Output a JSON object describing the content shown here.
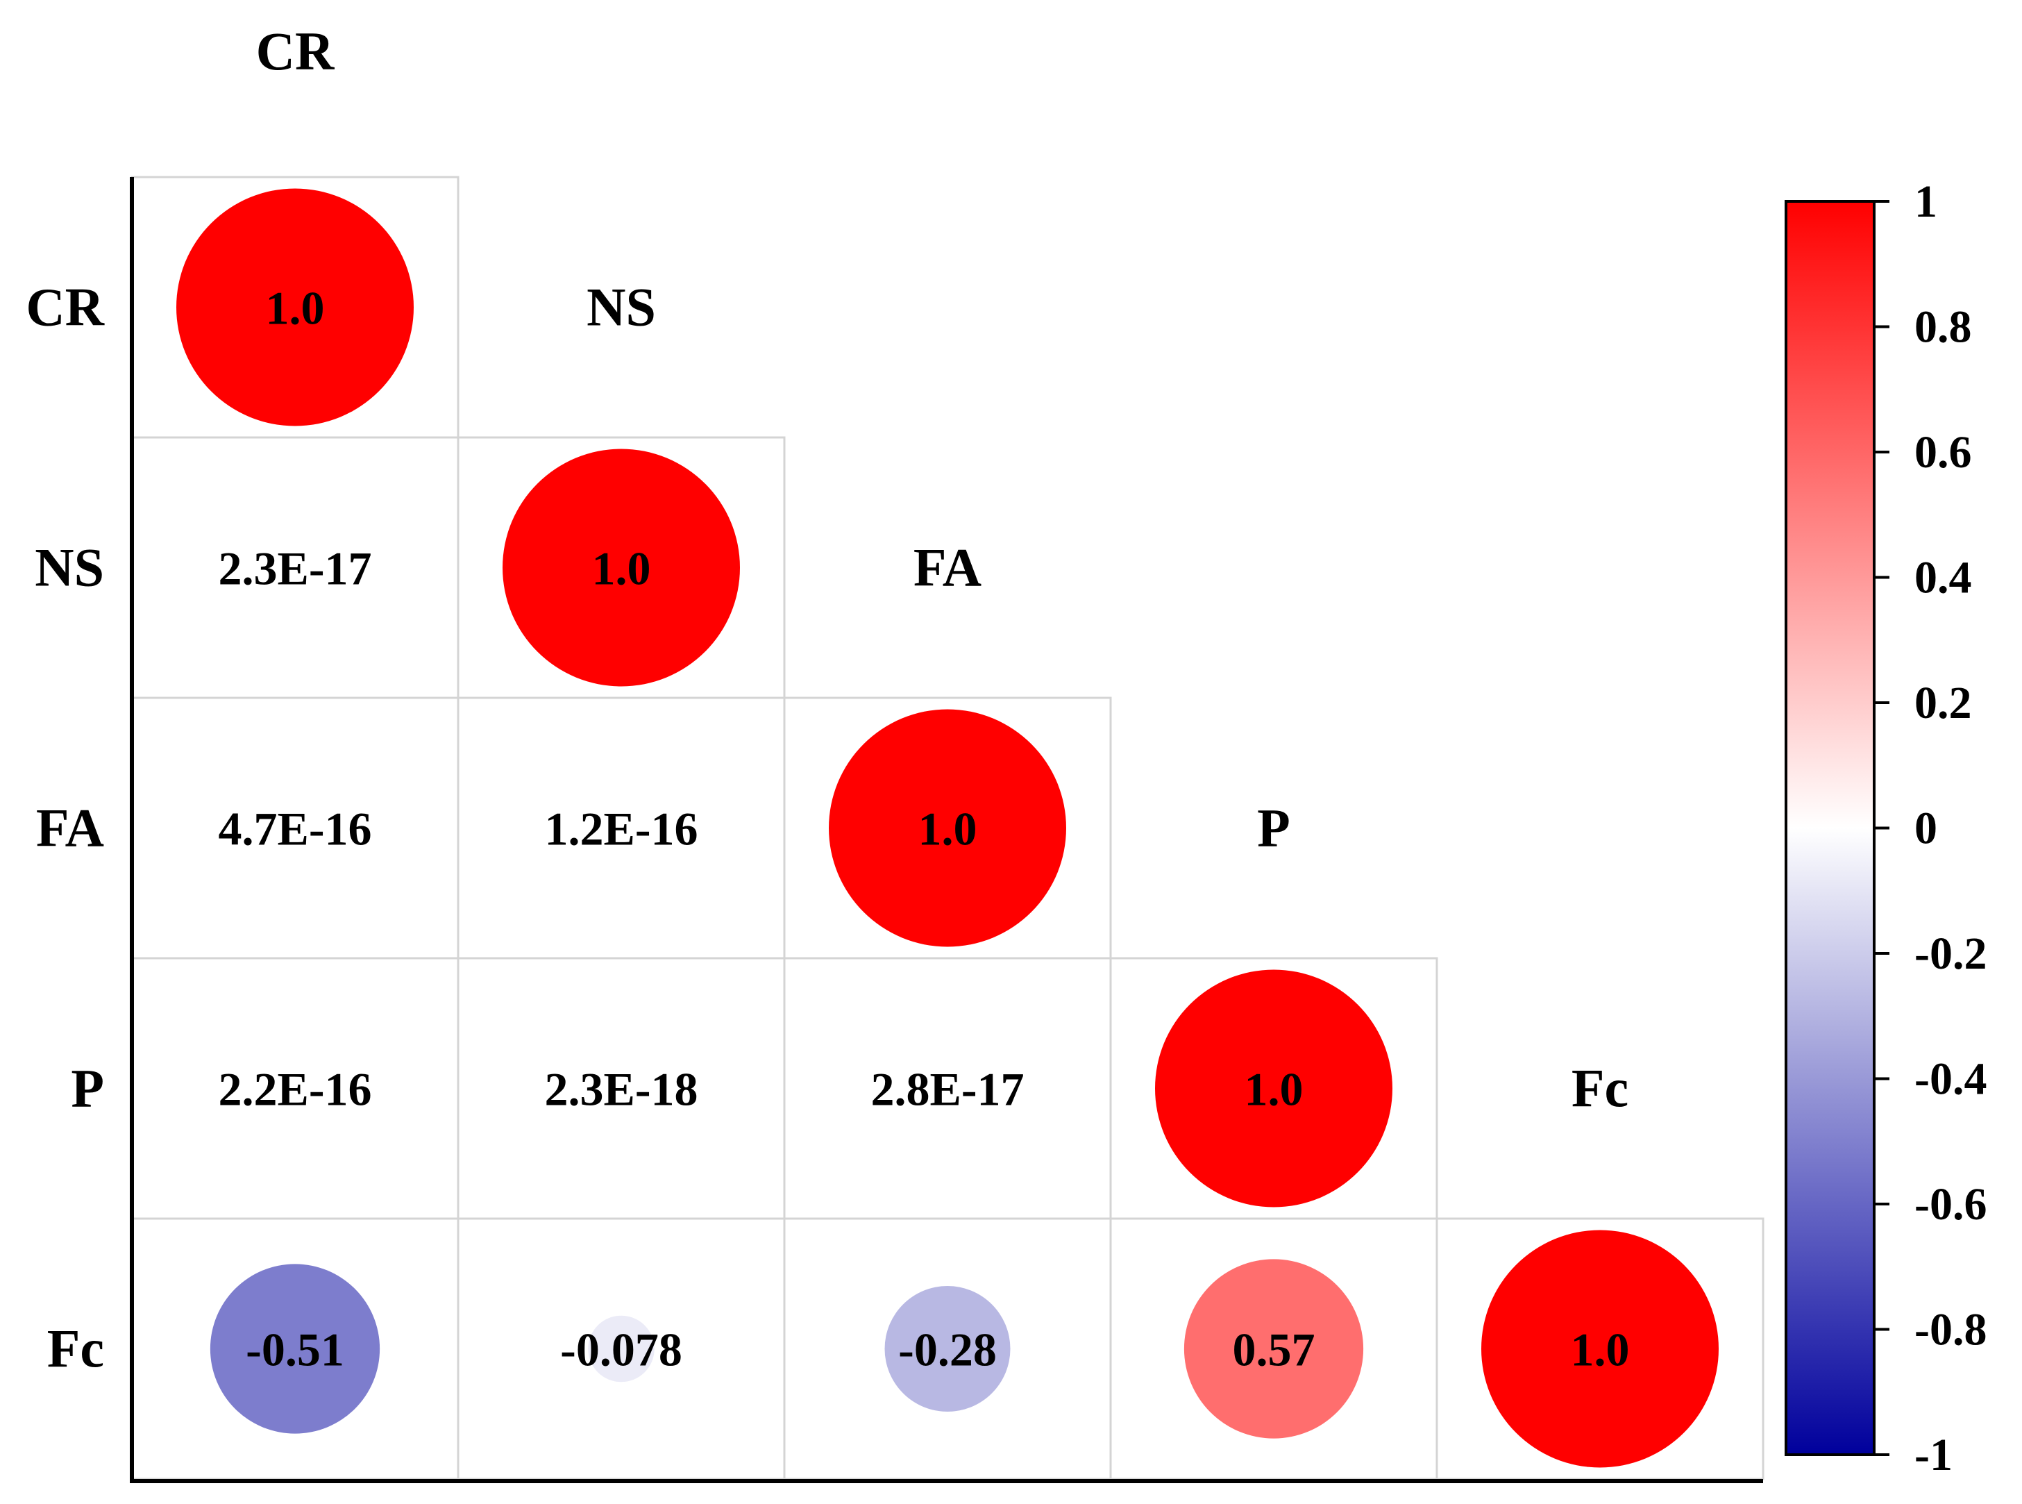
{
  "chart_data": {
    "type": "heatmap",
    "variables": [
      "CR",
      "NS",
      "FA",
      "P",
      "Fc"
    ],
    "matrix": [
      [
        "1.0",
        null,
        null,
        null,
        null
      ],
      [
        "2.3E-17",
        "1.0",
        null,
        null,
        null
      ],
      [
        "4.7E-16",
        "1.2E-16",
        "1.0",
        null,
        null
      ],
      [
        "2.2E-16",
        "2.3E-18",
        "2.8E-17",
        "1.0",
        null
      ],
      [
        "-0.51",
        "-0.078",
        "-0.28",
        "0.57",
        "1.0"
      ]
    ],
    "values": [
      [
        1.0,
        null,
        null,
        null,
        null
      ],
      [
        2.3e-17,
        1.0,
        null,
        null,
        null
      ],
      [
        4.7e-16,
        1.2e-16,
        1.0,
        null,
        null
      ],
      [
        2.2e-16,
        2.3e-18,
        2.8e-17,
        1.0,
        null
      ],
      [
        -0.51,
        -0.078,
        -0.28,
        0.57,
        1.0
      ]
    ],
    "display": "lower triangle: circles on diagonal and where |r| is visible, numeric text elsewhere",
    "colorbar": {
      "min": -1,
      "max": 1,
      "ticks": [
        "1",
        "0.8",
        "0.6",
        "0.4",
        "0.2",
        "0",
        "-0.2",
        "-0.4",
        "-0.6",
        "-0.8",
        "-1"
      ],
      "tick_values": [
        1,
        0.8,
        0.6,
        0.4,
        0.2,
        0,
        -0.2,
        -0.4,
        -0.6,
        -0.8,
        -1
      ],
      "colors": {
        "high": "#ff0000",
        "mid": "#ffffff",
        "low": "#00009c"
      }
    },
    "circle_cells": [
      [
        0,
        0
      ],
      [
        1,
        1
      ],
      [
        2,
        2
      ],
      [
        3,
        3
      ],
      [
        4,
        0
      ],
      [
        4,
        1
      ],
      [
        4,
        2
      ],
      [
        4,
        3
      ],
      [
        4,
        4
      ]
    ],
    "grid": true
  }
}
